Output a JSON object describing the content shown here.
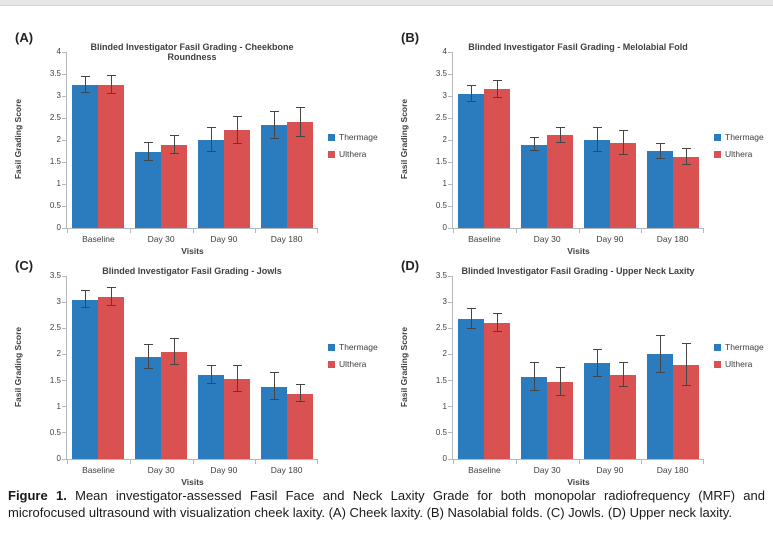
{
  "figure": {
    "caption_label": "Figure 1.",
    "caption_text": " Mean investigator-assessed Fasil Face and Neck Laxity Grade for both monopolar radiofrequency (MRF) and microfocused ultrasound with visualization cheek laxity. (A) Cheek laxity. (B) Nasolabial folds. (C) Jowls. (D) Upper neck laxity."
  },
  "colors": {
    "thermage": "#2B7CBF",
    "ulthera": "#D95151",
    "error_bar": "#454545",
    "axis": "#B3B8BC"
  },
  "chart_data": [
    {
      "type": "bar",
      "panel": "(A)",
      "title": "Blinded Investigator Fasil Grading - Cheekbone Roundness",
      "xlabel": "Visits",
      "ylabel": "Fasil Grading Score",
      "ylim": [
        0,
        4
      ],
      "ytick_step": 0.5,
      "grid": false,
      "legend_position": "right",
      "categories": [
        "Baseline",
        "Day 30",
        "Day 90",
        "Day 180"
      ],
      "series": [
        {
          "name": "Thermage",
          "color": "#2B7CBF",
          "values": [
            3.25,
            1.73,
            2.0,
            2.33
          ],
          "errors": [
            0.19,
            0.21,
            0.27,
            0.31
          ]
        },
        {
          "name": "Ulthera",
          "color": "#D95151",
          "values": [
            3.25,
            1.89,
            2.22,
            2.4
          ],
          "errors": [
            0.2,
            0.2,
            0.3,
            0.33
          ]
        }
      ]
    },
    {
      "type": "bar",
      "panel": "(B)",
      "title": "Blinded Investigator Fasil Grading - Melolabial Fold",
      "xlabel": "Visits",
      "ylabel": "Fasil Grading Score",
      "ylim": [
        0,
        4
      ],
      "ytick_step": 0.5,
      "grid": false,
      "legend_position": "right",
      "categories": [
        "Baseline",
        "Day 30",
        "Day 90",
        "Day 180"
      ],
      "series": [
        {
          "name": "Thermage",
          "color": "#2B7CBF",
          "values": [
            3.05,
            1.89,
            2.0,
            1.74
          ],
          "errors": [
            0.18,
            0.15,
            0.28,
            0.17
          ]
        },
        {
          "name": "Ulthera",
          "color": "#D95151",
          "values": [
            3.15,
            2.11,
            1.94,
            1.62
          ],
          "errors": [
            0.2,
            0.17,
            0.27,
            0.18
          ]
        }
      ]
    },
    {
      "type": "bar",
      "panel": "(C)",
      "title": "Blinded Investigator Fasil Grading - Jowls",
      "xlabel": "Visits",
      "ylabel": "Fasil Grading Score",
      "ylim": [
        0,
        3.5
      ],
      "ytick_step": 0.5,
      "grid": false,
      "legend_position": "right",
      "categories": [
        "Baseline",
        "Day 30",
        "Day 90",
        "Day 180"
      ],
      "series": [
        {
          "name": "Thermage",
          "color": "#2B7CBF",
          "values": [
            3.05,
            1.95,
            1.6,
            1.38
          ],
          "errors": [
            0.16,
            0.23,
            0.17,
            0.26
          ]
        },
        {
          "name": "Ulthera",
          "color": "#D95151",
          "values": [
            3.1,
            2.05,
            1.53,
            1.25
          ],
          "errors": [
            0.18,
            0.25,
            0.25,
            0.16
          ]
        }
      ]
    },
    {
      "type": "bar",
      "panel": "(D)",
      "title": "Blinded Investigator Fasil Grading - Upper Neck Laxity",
      "xlabel": "Visits",
      "ylabel": "Fasil Grading Score",
      "ylim": [
        0,
        3.5
      ],
      "ytick_step": 0.5,
      "grid": false,
      "legend_position": "right",
      "categories": [
        "Baseline",
        "Day 30",
        "Day 90",
        "Day 180"
      ],
      "series": [
        {
          "name": "Thermage",
          "color": "#2B7CBF",
          "values": [
            2.68,
            1.57,
            1.83,
            2.0
          ],
          "errors": [
            0.19,
            0.27,
            0.26,
            0.36
          ]
        },
        {
          "name": "Ulthera",
          "color": "#D95151",
          "values": [
            2.6,
            1.47,
            1.6,
            1.8
          ],
          "errors": [
            0.18,
            0.27,
            0.23,
            0.4
          ]
        }
      ]
    }
  ]
}
